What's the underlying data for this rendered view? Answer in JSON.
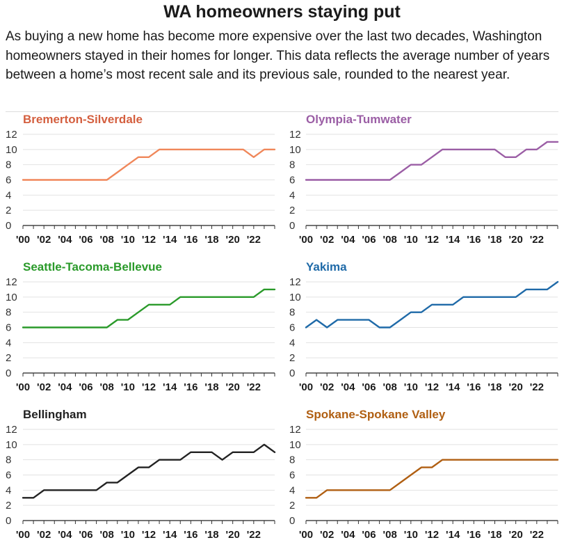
{
  "header": {
    "title": "WA homeowners staying put",
    "subtitle": "As buying a new home has become more expensive over the last two decades, Washington homeowners stayed in their homes for longer. This data reflects the average number of years between a home’s most recent sale and its previous sale, rounded to the nearest year."
  },
  "chart_data": [
    {
      "type": "line",
      "title": "Bremerton-Silverdale",
      "color": "#f0875a",
      "title_color": "#d45f3f",
      "x": [
        2000,
        2001,
        2002,
        2003,
        2004,
        2005,
        2006,
        2007,
        2008,
        2009,
        2010,
        2011,
        2012,
        2013,
        2014,
        2015,
        2016,
        2017,
        2018,
        2019,
        2020,
        2021,
        2022,
        2023,
        2024
      ],
      "values": [
        6,
        6,
        6,
        6,
        6,
        6,
        6,
        6,
        6,
        7,
        8,
        9,
        9,
        10,
        10,
        10,
        10,
        10,
        10,
        10,
        10,
        10,
        9,
        10,
        10
      ],
      "ylim": [
        0,
        12
      ],
      "yticks": [
        0,
        2,
        4,
        6,
        8,
        10,
        12
      ],
      "xtick_labels": [
        "'00",
        "'02",
        "'04",
        "'06",
        "'08",
        "'10",
        "'12",
        "'14",
        "'16",
        "'18",
        "'20",
        "'22"
      ]
    },
    {
      "type": "line",
      "title": "Olympia-Tumwater",
      "color": "#9b5ea5",
      "title_color": "#9b5ea5",
      "x": [
        2000,
        2001,
        2002,
        2003,
        2004,
        2005,
        2006,
        2007,
        2008,
        2009,
        2010,
        2011,
        2012,
        2013,
        2014,
        2015,
        2016,
        2017,
        2018,
        2019,
        2020,
        2021,
        2022,
        2023,
        2024
      ],
      "values": [
        6,
        6,
        6,
        6,
        6,
        6,
        6,
        6,
        6,
        7,
        8,
        8,
        9,
        10,
        10,
        10,
        10,
        10,
        10,
        9,
        9,
        10,
        10,
        11,
        11
      ],
      "ylim": [
        0,
        12
      ],
      "yticks": [
        0,
        2,
        4,
        6,
        8,
        10,
        12
      ],
      "xtick_labels": [
        "'00",
        "'02",
        "'04",
        "'06",
        "'08",
        "'10",
        "'12",
        "'14",
        "'16",
        "'18",
        "'20",
        "'22"
      ]
    },
    {
      "type": "line",
      "title": "Seattle-Tacoma-Bellevue",
      "color": "#2a9a2a",
      "title_color": "#2a9a2a",
      "x": [
        2000,
        2001,
        2002,
        2003,
        2004,
        2005,
        2006,
        2007,
        2008,
        2009,
        2010,
        2011,
        2012,
        2013,
        2014,
        2015,
        2016,
        2017,
        2018,
        2019,
        2020,
        2021,
        2022,
        2023,
        2024
      ],
      "values": [
        6,
        6,
        6,
        6,
        6,
        6,
        6,
        6,
        6,
        7,
        7,
        8,
        9,
        9,
        9,
        10,
        10,
        10,
        10,
        10,
        10,
        10,
        10,
        11,
        11
      ],
      "ylim": [
        0,
        12
      ],
      "yticks": [
        0,
        2,
        4,
        6,
        8,
        10,
        12
      ],
      "xtick_labels": [
        "'00",
        "'02",
        "'04",
        "'06",
        "'08",
        "'10",
        "'12",
        "'14",
        "'16",
        "'18",
        "'20",
        "'22"
      ]
    },
    {
      "type": "line",
      "title": "Yakima",
      "color": "#1f6aa8",
      "title_color": "#1f6aa8",
      "x": [
        2000,
        2001,
        2002,
        2003,
        2004,
        2005,
        2006,
        2007,
        2008,
        2009,
        2010,
        2011,
        2012,
        2013,
        2014,
        2015,
        2016,
        2017,
        2018,
        2019,
        2020,
        2021,
        2022,
        2023,
        2024
      ],
      "values": [
        6,
        7,
        6,
        7,
        7,
        7,
        7,
        6,
        6,
        7,
        8,
        8,
        9,
        9,
        9,
        10,
        10,
        10,
        10,
        10,
        10,
        11,
        11,
        11,
        12
      ],
      "ylim": [
        0,
        12
      ],
      "yticks": [
        0,
        2,
        4,
        6,
        8,
        10,
        12
      ],
      "xtick_labels": [
        "'00",
        "'02",
        "'04",
        "'06",
        "'08",
        "'10",
        "'12",
        "'14",
        "'16",
        "'18",
        "'20",
        "'22"
      ]
    },
    {
      "type": "line",
      "title": "Bellingham",
      "color": "#222222",
      "title_color": "#222222",
      "x": [
        2000,
        2001,
        2002,
        2003,
        2004,
        2005,
        2006,
        2007,
        2008,
        2009,
        2010,
        2011,
        2012,
        2013,
        2014,
        2015,
        2016,
        2017,
        2018,
        2019,
        2020,
        2021,
        2022,
        2023,
        2024
      ],
      "values": [
        3,
        3,
        4,
        4,
        4,
        4,
        4,
        4,
        5,
        5,
        6,
        7,
        7,
        8,
        8,
        8,
        9,
        9,
        9,
        8,
        9,
        9,
        9,
        10,
        9
      ],
      "ylim": [
        0,
        12
      ],
      "yticks": [
        0,
        2,
        4,
        6,
        8,
        10,
        12
      ],
      "xtick_labels": [
        "'00",
        "'02",
        "'04",
        "'06",
        "'08",
        "'10",
        "'12",
        "'14",
        "'16",
        "'18",
        "'20",
        "'22"
      ]
    },
    {
      "type": "line",
      "title": "Spokane-Spokane Valley",
      "color": "#b05f12",
      "title_color": "#b05f12",
      "x": [
        2000,
        2001,
        2002,
        2003,
        2004,
        2005,
        2006,
        2007,
        2008,
        2009,
        2010,
        2011,
        2012,
        2013,
        2014,
        2015,
        2016,
        2017,
        2018,
        2019,
        2020,
        2021,
        2022,
        2023,
        2024
      ],
      "values": [
        3,
        3,
        4,
        4,
        4,
        4,
        4,
        4,
        4,
        5,
        6,
        7,
        7,
        8,
        8,
        8,
        8,
        8,
        8,
        8,
        8,
        8,
        8,
        8,
        8
      ],
      "ylim": [
        0,
        12
      ],
      "yticks": [
        0,
        2,
        4,
        6,
        8,
        10,
        12
      ],
      "xtick_labels": [
        "'00",
        "'02",
        "'04",
        "'06",
        "'08",
        "'10",
        "'12",
        "'14",
        "'16",
        "'18",
        "'20",
        "'22"
      ]
    }
  ]
}
